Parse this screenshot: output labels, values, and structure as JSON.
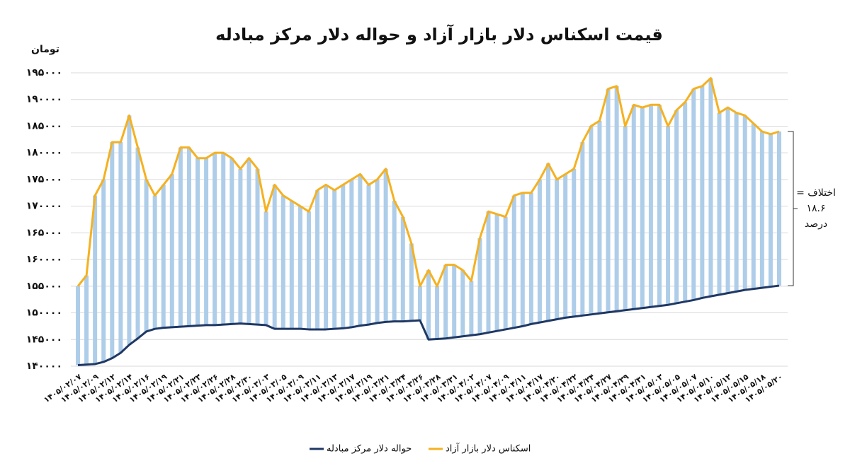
{
  "chart_data": {
    "type": "line",
    "title": "قیمت اسکناس دلار بازار آزاد و حواله دلار مرکز مبادله",
    "y_label": "تومان",
    "annotation": [
      "اختلاف =",
      "۱۸.۶",
      "درصد"
    ],
    "categories": [
      "۱۴۰۵/۰۲/۰۷",
      null,
      "۱۴۰۵/۰۲/۰۹",
      null,
      "۱۴۰۵/۰۲/۱۲",
      null,
      "۱۴۰۵/۰۲/۱۴",
      null,
      "۱۴۰۵/۰۲/۱۶",
      null,
      "۱۴۰۵/۰۲/۱۹",
      null,
      "۱۴۰۵/۰۲/۲۱",
      null,
      "۱۴۰۵/۰۲/۲۳",
      null,
      "۱۴۰۵/۰۲/۲۶",
      null,
      "۱۴۰۵/۰۲/۲۸",
      null,
      "۱۴۰۵/۰۲/۳۰",
      null,
      "۱۴۰۵/۰۳/۰۳",
      null,
      "۱۴۰۵/۰۳/۰۵",
      null,
      "۱۴۰۵/۰۳/۰۹",
      null,
      "۱۴۰۵/۰۳/۱۱",
      null,
      "۱۴۰۵/۰۳/۱۳",
      null,
      "۱۴۰۵/۰۳/۱۷",
      null,
      "۱۴۰۵/۰۳/۱۹",
      null,
      "۱۴۰۵/۰۳/۲۱",
      null,
      "۱۴۰۵/۰۳/۲۴",
      null,
      "۱۴۰۵/۰۳/۲۶",
      null,
      "۱۴۰۵/۰۳/۲۸",
      null,
      "۱۴۰۵/۰۳/۳۱",
      null,
      "۱۴۰۵/۰۴/۰۲",
      null,
      "۱۴۰۵/۰۴/۰۷",
      null,
      "۱۴۰۵/۰۴/۰۹",
      null,
      "۱۴۰۵/۰۴/۱۱",
      null,
      "۱۴۰۵/۰۴/۱۷",
      null,
      "۱۴۰۵/۰۴/۲۰",
      null,
      "۱۴۰۵/۰۴/۲۲",
      null,
      "۱۴۰۵/۰۴/۲۴",
      null,
      "۱۴۰۵/۰۴/۲۷",
      null,
      "۱۴۰۵/۰۴/۲۹",
      null,
      "۱۴۰۵/۰۴/۳۱",
      null,
      "۱۴۰۵/۰۵/۰۳",
      null,
      "۱۴۰۵/۰۵/۰۵",
      null,
      "۱۴۰۵/۰۵/۰۷",
      null,
      "۱۴۰۵/۰۵/۱۰",
      null,
      "۱۴۰۵/۰۵/۱۲",
      null,
      "۱۴۰۵/۰۵/۱۵",
      null,
      "۱۴۰۵/۰۵/۱۸",
      null,
      "۱۴۰۵/۰۵/۲۰"
    ],
    "series": [
      {
        "name": "حواله دلار مرکز مبادله",
        "color": "#1f3864",
        "values": [
          140200,
          140300,
          140400,
          140800,
          141500,
          142500,
          144000,
          145200,
          146500,
          147000,
          147200,
          147300,
          147400,
          147500,
          147600,
          147700,
          147700,
          147800,
          147900,
          148000,
          147900,
          147800,
          147700,
          147000,
          147000,
          147000,
          147000,
          146900,
          146900,
          146900,
          147000,
          147100,
          147300,
          147600,
          147800,
          148100,
          148300,
          148400,
          148400,
          148500,
          148600,
          145000,
          145100,
          145200,
          145400,
          145600,
          145800,
          146000,
          146300,
          146600,
          146900,
          147200,
          147500,
          147900,
          148200,
          148500,
          148800,
          149100,
          149300,
          149500,
          149700,
          149900,
          150100,
          150300,
          150500,
          150700,
          150900,
          151100,
          151300,
          151500,
          151800,
          152100,
          152400,
          152800,
          153100,
          153400,
          153700,
          154000,
          154300,
          154500,
          154700,
          154900,
          155100
        ]
      },
      {
        "name": "اسکناس دلار بازار آزاد",
        "color": "#f5b120",
        "values": [
          155000,
          157000,
          172000,
          175000,
          182000,
          182000,
          187000,
          181000,
          175000,
          172000,
          174000,
          176000,
          181000,
          181000,
          179000,
          179000,
          180000,
          180000,
          179000,
          177000,
          179000,
          177000,
          169000,
          174000,
          172000,
          171000,
          170000,
          169000,
          173000,
          174000,
          173000,
          174000,
          175000,
          176000,
          174000,
          175000,
          177000,
          171000,
          168000,
          163000,
          155000,
          158000,
          155000,
          159000,
          159000,
          158000,
          156000,
          164000,
          169000,
          168500,
          168000,
          172000,
          172500,
          172500,
          175000,
          178000,
          175000,
          176000,
          177000,
          182000,
          185000,
          186000,
          192000,
          192500,
          185000,
          189000,
          188500,
          189000,
          189000,
          185000,
          188000,
          189500,
          192000,
          192500,
          194000,
          187500,
          188500,
          187500,
          187000,
          185500,
          184000,
          183500,
          184000
        ]
      }
    ],
    "drop_line_color": "#aecde9",
    "ylim": [
      140000,
      195000
    ],
    "yticks": [
      {
        "value": 140000,
        "label": "۱۴۰۰۰۰"
      },
      {
        "value": 145000,
        "label": "۱۴۵۰۰۰"
      },
      {
        "value": 150000,
        "label": "۱۵۰۰۰۰"
      },
      {
        "value": 155000,
        "label": "۱۵۵۰۰۰"
      },
      {
        "value": 160000,
        "label": "۱۶۰۰۰۰"
      },
      {
        "value": 165000,
        "label": "۱۶۵۰۰۰"
      },
      {
        "value": 170000,
        "label": "۱۷۰۰۰۰"
      },
      {
        "value": 175000,
        "label": "۱۷۵۰۰۰"
      },
      {
        "value": 180000,
        "label": "۱۸۰۰۰۰"
      },
      {
        "value": 185000,
        "label": "۱۸۵۰۰۰"
      },
      {
        "value": 190000,
        "label": "۱۹۰۰۰۰"
      },
      {
        "value": 195000,
        "label": "۱۹۵۰۰۰"
      }
    ],
    "grid": true,
    "legend": "bottom"
  }
}
